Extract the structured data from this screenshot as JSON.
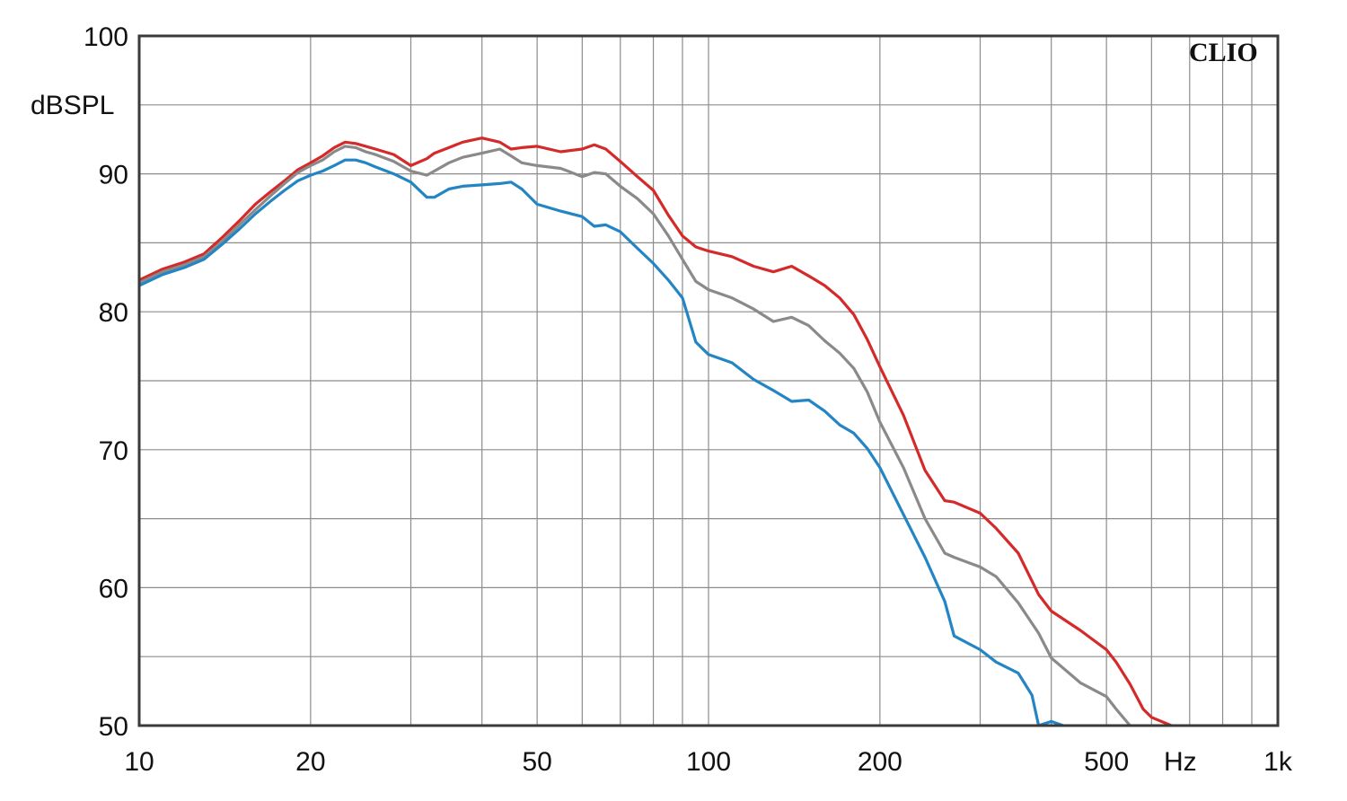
{
  "chart_data": {
    "type": "line",
    "watermark": "CLIO",
    "x_unit": "Hz",
    "y_unit": "dBSPL",
    "x_scale": "log",
    "xlim": [
      10,
      1000
    ],
    "ylim": [
      50,
      100
    ],
    "grid": true,
    "x_ticks": [
      {
        "value": 10,
        "label": "10"
      },
      {
        "value": 20,
        "label": "20"
      },
      {
        "value": 50,
        "label": "50"
      },
      {
        "value": 100,
        "label": "100"
      },
      {
        "value": 200,
        "label": "200"
      },
      {
        "value": 500,
        "label": "500"
      },
      {
        "value": 1000,
        "label": "1k"
      }
    ],
    "y_ticks": [
      {
        "value": 100,
        "label": "100"
      },
      {
        "value": 90,
        "label": "90"
      },
      {
        "value": 80,
        "label": "80"
      },
      {
        "value": 70,
        "label": "70"
      },
      {
        "value": 60,
        "label": "60"
      },
      {
        "value": 50,
        "label": "50"
      }
    ],
    "series": [
      {
        "color": "#d42a2a",
        "x": [
          10,
          11,
          12,
          13,
          14,
          15,
          16,
          17,
          18,
          19,
          20,
          21,
          22,
          23,
          24,
          25,
          26,
          28,
          30,
          32,
          33,
          35,
          37,
          40,
          43,
          45,
          47,
          50,
          55,
          60,
          63,
          66,
          70,
          75,
          80,
          85,
          90,
          95,
          100,
          110,
          120,
          130,
          140,
          150,
          160,
          170,
          180,
          190,
          200,
          220,
          240,
          260,
          270,
          300,
          320,
          350,
          380,
          400,
          450,
          500,
          520,
          550,
          580,
          600,
          650
        ],
        "y": [
          82.3,
          83.1,
          83.6,
          84.2,
          85.4,
          86.6,
          87.8,
          88.7,
          89.5,
          90.3,
          90.8,
          91.3,
          91.9,
          92.3,
          92.2,
          92.0,
          91.8,
          91.4,
          90.6,
          91.1,
          91.5,
          91.9,
          92.3,
          92.6,
          92.3,
          91.8,
          91.9,
          92.0,
          91.6,
          91.8,
          92.1,
          91.8,
          90.9,
          89.8,
          88.8,
          87.0,
          85.5,
          84.7,
          84.4,
          84.0,
          83.3,
          82.9,
          83.3,
          82.6,
          81.9,
          81.0,
          79.8,
          78.0,
          76.0,
          72.5,
          68.5,
          66.3,
          66.2,
          65.4,
          64.3,
          62.5,
          59.5,
          58.3,
          56.9,
          55.5,
          54.6,
          53.0,
          51.2,
          50.6,
          50.0
        ]
      },
      {
        "color": "#8a8a8a",
        "x": [
          10,
          11,
          12,
          13,
          14,
          15,
          16,
          17,
          18,
          19,
          20,
          21,
          22,
          23,
          24,
          25,
          26,
          28,
          30,
          32,
          33,
          35,
          37,
          40,
          43,
          45,
          47,
          50,
          55,
          60,
          63,
          66,
          70,
          75,
          80,
          85,
          90,
          95,
          100,
          110,
          120,
          130,
          140,
          150,
          160,
          170,
          180,
          190,
          200,
          220,
          240,
          260,
          270,
          300,
          320,
          350,
          380,
          400,
          450,
          500,
          520,
          550
        ],
        "y": [
          82.1,
          82.9,
          83.4,
          84.0,
          85.1,
          86.3,
          87.4,
          88.4,
          89.3,
          90.1,
          90.6,
          91.0,
          91.6,
          92.0,
          91.9,
          91.6,
          91.4,
          90.9,
          90.2,
          89.9,
          90.2,
          90.8,
          91.2,
          91.5,
          91.8,
          91.3,
          90.8,
          90.6,
          90.4,
          89.8,
          90.1,
          90.0,
          89.1,
          88.2,
          87.1,
          85.5,
          83.8,
          82.2,
          81.6,
          81.0,
          80.2,
          79.3,
          79.6,
          79.0,
          77.9,
          77.0,
          75.9,
          74.2,
          72.0,
          68.7,
          65.0,
          62.5,
          62.2,
          61.5,
          60.8,
          58.9,
          56.7,
          54.9,
          53.1,
          52.1,
          51.2,
          50.0
        ]
      },
      {
        "color": "#2485c4",
        "x": [
          10,
          11,
          12,
          13,
          14,
          15,
          16,
          17,
          18,
          19,
          20,
          21,
          22,
          23,
          24,
          25,
          26,
          28,
          30,
          32,
          33,
          35,
          37,
          40,
          43,
          45,
          47,
          50,
          55,
          60,
          63,
          66,
          70,
          75,
          80,
          85,
          90,
          95,
          100,
          110,
          120,
          130,
          140,
          150,
          160,
          170,
          180,
          190,
          200,
          220,
          240,
          260,
          270,
          300,
          320,
          350,
          370,
          380,
          400,
          420
        ],
        "y": [
          81.9,
          82.7,
          83.2,
          83.8,
          84.9,
          86.0,
          87.1,
          88.0,
          88.8,
          89.5,
          89.9,
          90.2,
          90.6,
          91.0,
          91.0,
          90.8,
          90.5,
          90.0,
          89.4,
          88.3,
          88.3,
          88.9,
          89.1,
          89.2,
          89.3,
          89.4,
          88.9,
          87.8,
          87.3,
          86.9,
          86.2,
          86.3,
          85.8,
          84.6,
          83.5,
          82.3,
          81.0,
          77.8,
          76.9,
          76.3,
          75.1,
          74.3,
          73.5,
          73.6,
          72.8,
          71.8,
          71.2,
          70.1,
          68.7,
          65.3,
          62.2,
          59.0,
          56.5,
          55.5,
          54.6,
          53.8,
          52.2,
          50.0,
          50.3,
          50.0
        ]
      }
    ]
  }
}
